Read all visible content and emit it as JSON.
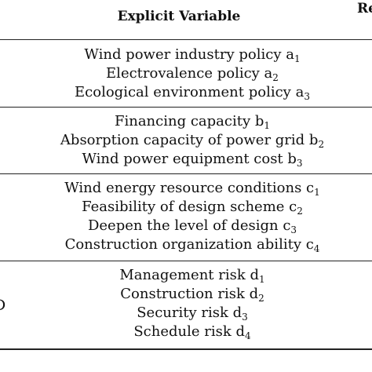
{
  "table": {
    "header": {
      "explicit_variable": "Explicit Variable",
      "next_column_partial": "Re"
    },
    "groups": [
      {
        "rows": [
          {
            "text": "Wind power industry policy a",
            "sub": "1"
          },
          {
            "text": "Electrovalence policy a",
            "sub": "2"
          },
          {
            "text": "Ecological environment policy a",
            "sub": "3"
          }
        ]
      },
      {
        "rows": [
          {
            "text": "Financing capacity b",
            "sub": "1"
          },
          {
            "text": "Absorption capacity of power grid b",
            "sub": "2"
          },
          {
            "text": "Wind power equipment cost b",
            "sub": "3"
          }
        ]
      },
      {
        "rows": [
          {
            "text": "Wind energy resource conditions c",
            "sub": "1"
          },
          {
            "text": "Feasibility of design scheme c",
            "sub": "2"
          },
          {
            "text": "Deepen the level of design c",
            "sub": "3"
          },
          {
            "text": "Construction organization ability c",
            "sub": "4"
          }
        ]
      },
      {
        "rows": [
          {
            "text": "Management risk d",
            "sub": "1"
          },
          {
            "text": "Construction risk d",
            "sub": "2"
          },
          {
            "text": "Security risk d",
            "sub": "3"
          },
          {
            "text": "Schedule risk d",
            "sub": "4"
          }
        ]
      }
    ],
    "left_edge_fragment": "D"
  }
}
